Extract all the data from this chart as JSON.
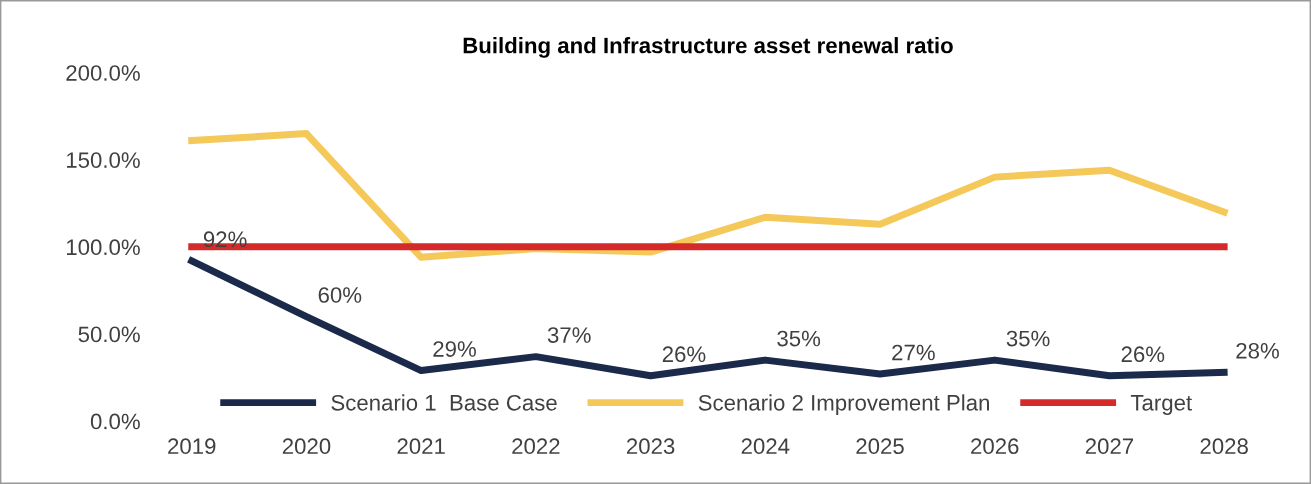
{
  "chart_data": {
    "type": "line",
    "title": "Building and Infrastructure asset renewal ratio",
    "categories": [
      "2019",
      "2020",
      "2021",
      "2022",
      "2023",
      "2024",
      "2025",
      "2026",
      "2027",
      "2028"
    ],
    "series": [
      {
        "name": "Scenario 1  Base Case",
        "color": "#1b2a4a",
        "values": [
          92,
          60,
          29,
          37,
          26,
          35,
          27,
          35,
          26,
          28
        ],
        "data_labels": true,
        "value_labels": [
          "92%",
          "60%",
          "29%",
          "37%",
          "26%",
          "35%",
          "27%",
          "35%",
          "26%",
          "28%"
        ]
      },
      {
        "name": "Scenario 2 Improvement Plan",
        "color": "#f5c85a",
        "values": [
          161,
          165,
          94,
          99,
          97,
          117,
          113,
          140,
          144,
          120
        ]
      },
      {
        "name": "Target",
        "color": "#d42a2a",
        "values": [
          100,
          100,
          100,
          100,
          100,
          100,
          100,
          100,
          100,
          100
        ]
      }
    ],
    "ylim": [
      0,
      200
    ],
    "yticks": [
      {
        "value": 0,
        "label": "0.0%"
      },
      {
        "value": 50,
        "label": "50.0%"
      },
      {
        "value": 100,
        "label": "100.0%"
      },
      {
        "value": 150,
        "label": "150.0%"
      },
      {
        "value": 200,
        "label": "200.0%"
      }
    ],
    "grid": false,
    "legend": "bottom",
    "marker": "none",
    "line_style": "solid"
  }
}
